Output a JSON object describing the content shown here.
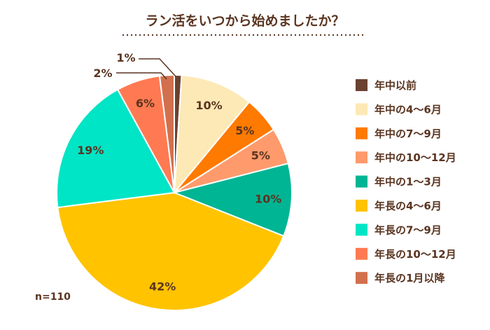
{
  "chart_data": {
    "type": "pie",
    "title": "ラン活をいつから始めましたか？",
    "note": "n=110",
    "start": "top",
    "direction": "clockwise",
    "legend_placement": "right",
    "categories": [
      "年中以前",
      "年中の4〜6月",
      "年中の7〜9月",
      "年中の10〜12月",
      "年中の1〜3月",
      "年長の4〜6月",
      "年長の7〜9月",
      "年長の10〜12月",
      "年長の1月以降"
    ],
    "values": [
      1,
      10,
      5,
      5,
      10,
      42,
      19,
      6,
      2
    ],
    "labels": [
      "1%",
      "10%",
      "5%",
      "5%",
      "10%",
      "42%",
      "19%",
      "6%",
      "2%"
    ],
    "colors": [
      "#6b4130",
      "#fde9b6",
      "#ff7a00",
      "#ff9a6c",
      "#00b593",
      "#ffc300",
      "#00e5c5",
      "#ff7a52",
      "#d2704e"
    ],
    "text_color": "#5a3420"
  }
}
